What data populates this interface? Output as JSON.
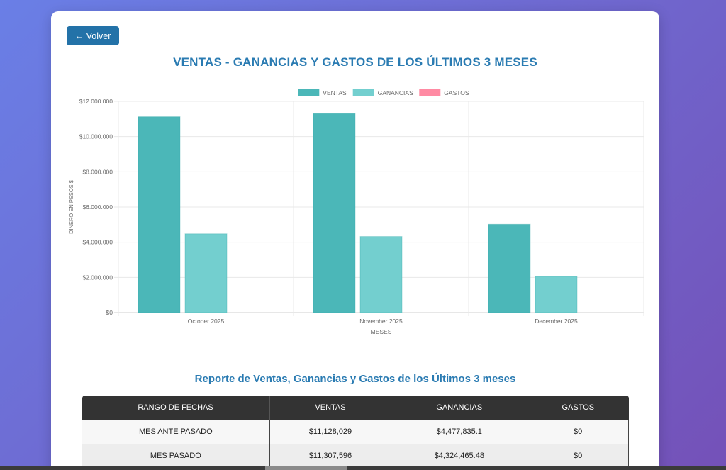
{
  "back_button": {
    "label": "← Volver"
  },
  "title": "VENTAS - GANANCIAS Y GASTOS DE LOS ÚLTIMOS 3 MESES",
  "chart_data": {
    "type": "bar",
    "categories": [
      "October 2025",
      "November 2025",
      "December 2025"
    ],
    "series": [
      {
        "name": "VENTAS",
        "color": "#4bb7b8",
        "values": [
          11128029,
          11307596,
          5020000
        ]
      },
      {
        "name": "GANANCIAS",
        "color": "#73cfcf",
        "values": [
          4477835.1,
          4324465.48,
          2050000
        ]
      },
      {
        "name": "GASTOS",
        "color": "#ff8aa3",
        "values": [
          0,
          0,
          0
        ]
      }
    ],
    "xlabel": "MESES",
    "ylabel": "DINERO EN PESOS $",
    "ylim": [
      0,
      12000000
    ],
    "yticks": [
      0,
      2000000,
      4000000,
      6000000,
      8000000,
      10000000,
      12000000
    ],
    "ytick_labels": [
      "$0",
      "$2.000.000",
      "$4.000.000",
      "$6.000.000",
      "$8.000.000",
      "$10.000.000",
      "$12.000.000"
    ],
    "grid": true,
    "legend_position": "top-center"
  },
  "report": {
    "title": "Reporte de Ventas, Ganancias y Gastos de los Últimos 3 meses",
    "columns": [
      "RANGO DE FECHAS",
      "VENTAS",
      "GANANCIAS",
      "GASTOS"
    ],
    "rows": [
      [
        "MES ANTE PASADO",
        "$11,128,029",
        "$4,477,835.1",
        "$0"
      ],
      [
        "MES PASADO",
        "$11,307,596",
        "$4,324,465.48",
        "$0"
      ]
    ]
  }
}
